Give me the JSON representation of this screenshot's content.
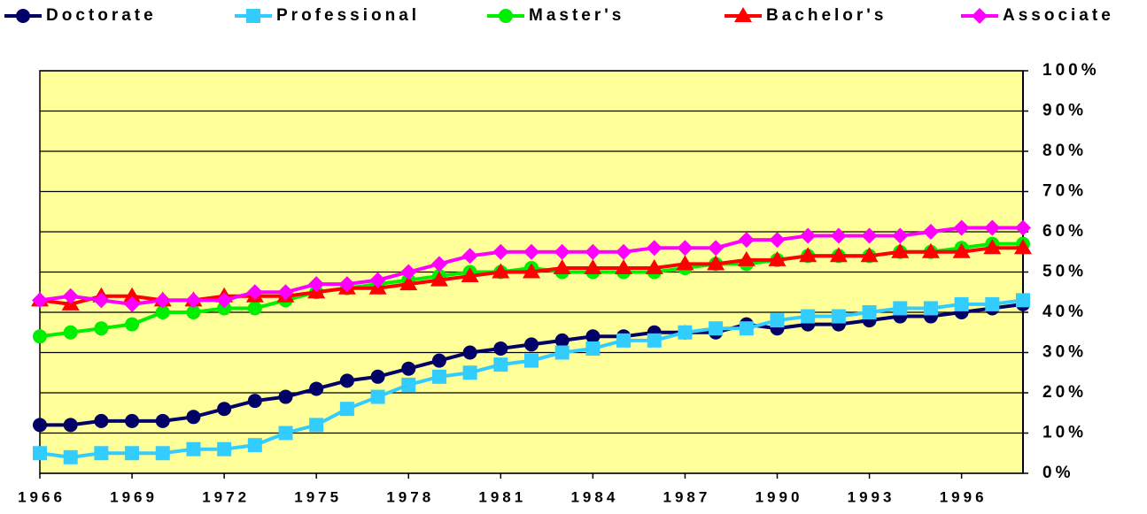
{
  "chart_data": {
    "type": "line",
    "x": [
      1966,
      1967,
      1968,
      1969,
      1970,
      1971,
      1972,
      1973,
      1974,
      1975,
      1976,
      1977,
      1978,
      1979,
      1980,
      1981,
      1982,
      1983,
      1984,
      1985,
      1986,
      1987,
      1988,
      1989,
      1990,
      1991,
      1992,
      1993,
      1994,
      1995,
      1996,
      1997,
      1998
    ],
    "xlim": [
      1966,
      1998
    ],
    "xticks": [
      1966,
      1969,
      1972,
      1975,
      1978,
      1981,
      1984,
      1987,
      1990,
      1993,
      1996
    ],
    "ylim": [
      0,
      100
    ],
    "yticks": [
      {
        "value": 0,
        "label": "0%"
      },
      {
        "value": 10,
        "label": "10%"
      },
      {
        "value": 20,
        "label": "20%"
      },
      {
        "value": 30,
        "label": "30%"
      },
      {
        "value": 40,
        "label": "40%"
      },
      {
        "value": 50,
        "label": "50%"
      },
      {
        "value": 60,
        "label": "60%"
      },
      {
        "value": 70,
        "label": "70%"
      },
      {
        "value": 80,
        "label": "80%"
      },
      {
        "value": 90,
        "label": "90%"
      },
      {
        "value": 100,
        "label": "100%"
      }
    ],
    "grid": true,
    "y_axis_side": "right",
    "legend": "top",
    "plot_background": "#ffff99",
    "series": [
      {
        "name": "Doctorate",
        "color": "#000066",
        "marker": "circle",
        "values": [
          12,
          12,
          13,
          13,
          13,
          14,
          16,
          18,
          19,
          21,
          23,
          24,
          26,
          28,
          30,
          31,
          32,
          33,
          34,
          34,
          35,
          35,
          35,
          37,
          36,
          37,
          37,
          38,
          39,
          39,
          40,
          41,
          42
        ]
      },
      {
        "name": "Professional",
        "color": "#33ccff",
        "marker": "square",
        "values": [
          5,
          4,
          5,
          5,
          5,
          6,
          6,
          7,
          10,
          12,
          16,
          19,
          22,
          24,
          25,
          27,
          28,
          30,
          31,
          33,
          33,
          35,
          36,
          36,
          38,
          39,
          39,
          40,
          41,
          41,
          42,
          42,
          43
        ]
      },
      {
        "name": "Master's",
        "color": "#00ee00",
        "marker": "circle",
        "values": [
          34,
          35,
          36,
          37,
          40,
          40,
          41,
          41,
          43,
          45,
          46,
          47,
          48,
          49,
          50,
          50,
          51,
          50,
          50,
          50,
          50,
          51,
          52,
          52,
          53,
          54,
          54,
          54,
          55,
          55,
          56,
          57,
          57
        ]
      },
      {
        "name": "Bachelor's",
        "color": "#ff0000",
        "marker": "triangle",
        "values": [
          43,
          42,
          44,
          44,
          43,
          43,
          44,
          44,
          44,
          45,
          46,
          46,
          47,
          48,
          49,
          50,
          50,
          51,
          51,
          51,
          51,
          52,
          52,
          53,
          53,
          54,
          54,
          54,
          55,
          55,
          55,
          56,
          56
        ]
      },
      {
        "name": "Associate",
        "color": "#ff00ff",
        "marker": "diamond",
        "values": [
          43,
          44,
          43,
          42,
          43,
          43,
          43,
          45,
          45,
          47,
          47,
          48,
          50,
          52,
          54,
          55,
          55,
          55,
          55,
          55,
          56,
          56,
          56,
          58,
          58,
          59,
          59,
          59,
          59,
          60,
          61,
          61,
          61
        ]
      }
    ]
  }
}
